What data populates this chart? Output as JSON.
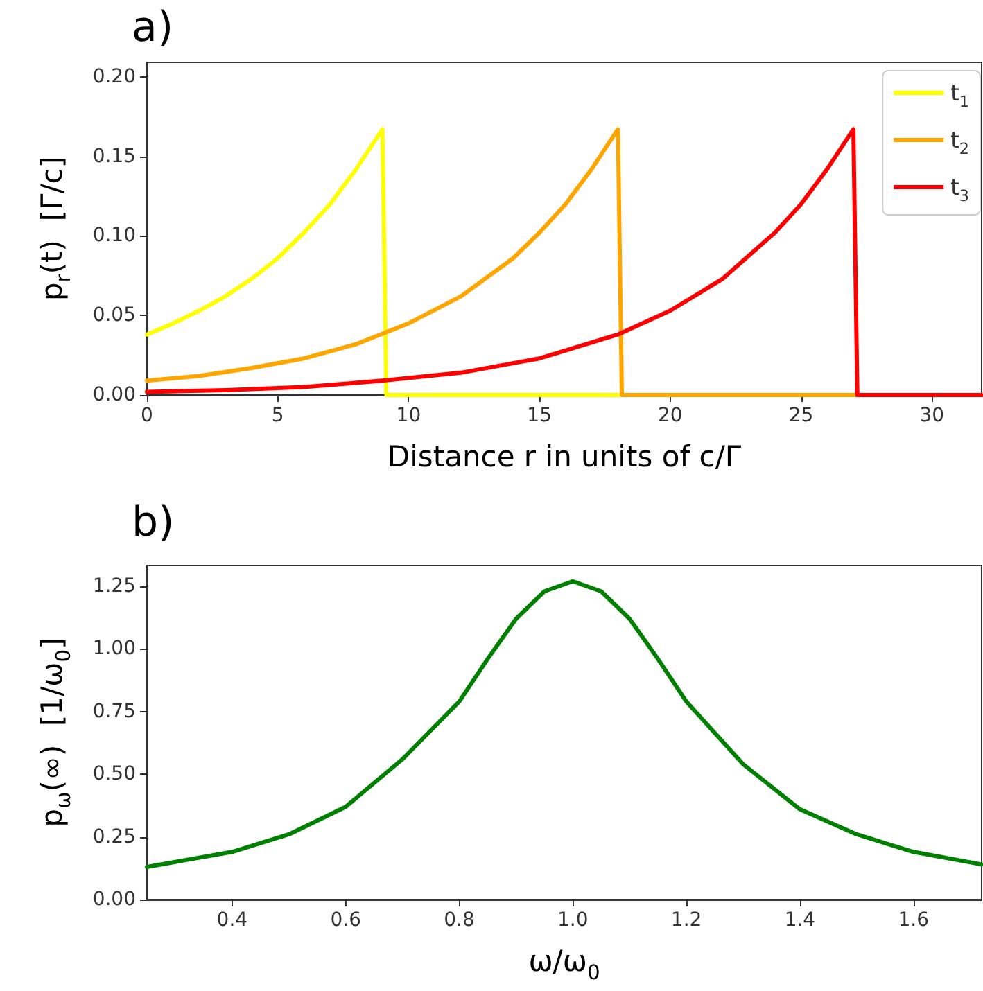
{
  "chart_data": [
    {
      "type": "line",
      "title": "a)",
      "xlabel": "Distance r in units of c/Γ",
      "ylabel": "p$_{r}$(t)  [Γ/c]",
      "xlim": [
        0,
        31.9
      ],
      "ylim": [
        0,
        0.209
      ],
      "xticks": [
        0,
        5,
        10,
        15,
        20,
        25,
        30
      ],
      "yticks": [
        {
          "value": 0,
          "label": "0.00"
        },
        {
          "value": 0.05,
          "label": "0.05"
        },
        {
          "value": 0.1,
          "label": "0.10"
        },
        {
          "value": 0.15,
          "label": "0.15"
        },
        {
          "value": 0.2,
          "label": "0.20"
        }
      ],
      "legend": "top right",
      "grid": false,
      "marker": "none",
      "line_style": "solid",
      "series": [
        {
          "name": "t$_{1}$",
          "color": "#ffff00",
          "x": [
            0,
            1,
            2,
            3,
            4,
            5,
            6,
            7,
            8,
            9,
            9.15,
            31.9
          ],
          "values": [
            0.038,
            0.045,
            0.053,
            0.062,
            0.073,
            0.086,
            0.102,
            0.12,
            0.142,
            0.167,
            0,
            0
          ]
        },
        {
          "name": "t$_{2}$",
          "color": "#ffa500",
          "x": [
            0,
            2,
            4,
            6,
            8,
            10,
            12,
            14,
            15,
            16,
            17,
            18,
            18.15,
            31.9
          ],
          "values": [
            0.009,
            0.012,
            0.017,
            0.023,
            0.032,
            0.045,
            0.062,
            0.086,
            0.102,
            0.12,
            0.142,
            0.167,
            0,
            0
          ]
        },
        {
          "name": "t$_{3}$",
          "color": "#ff0000",
          "x": [
            0,
            3,
            6,
            9,
            12,
            15,
            18,
            20,
            22,
            24,
            25,
            26,
            27,
            27.15,
            31.9
          ],
          "values": [
            0.002,
            0.003,
            0.005,
            0.009,
            0.014,
            0.023,
            0.038,
            0.053,
            0.073,
            0.102,
            0.12,
            0.142,
            0.167,
            0,
            0
          ]
        }
      ]
    },
    {
      "type": "line",
      "title": "b)",
      "xlabel": "ω/ω$_{0}$",
      "ylabel": "p$_{ω}$(∞)  [1/ω$_{0}$]",
      "xlim": [
        0.25,
        1.72
      ],
      "ylim": [
        0,
        1.333
      ],
      "xticks": [
        0.4,
        0.6,
        0.8,
        {
          "value": 1,
          "label": "1.0"
        },
        1.2,
        1.4,
        1.6
      ],
      "yticks": [
        {
          "value": 0,
          "label": "0.00"
        },
        {
          "value": 0.25,
          "label": "0.25"
        },
        {
          "value": 0.5,
          "label": "0.50"
        },
        {
          "value": 0.75,
          "label": "0.75"
        },
        {
          "value": 1,
          "label": "1.00"
        },
        {
          "value": 1.25,
          "label": "1.25"
        }
      ],
      "legend": false,
      "grid": false,
      "marker": "none",
      "line_style": "solid",
      "series": [
        {
          "color": "#008000",
          "x": [
            0.25,
            0.3,
            0.4,
            0.5,
            0.6,
            0.7,
            0.8,
            0.85,
            0.9,
            0.95,
            1.0,
            1.05,
            1.1,
            1.15,
            1.2,
            1.3,
            1.4,
            1.5,
            1.6,
            1.72
          ],
          "values": [
            0.13,
            0.15,
            0.19,
            0.26,
            0.37,
            0.56,
            0.79,
            0.96,
            1.12,
            1.23,
            1.27,
            1.23,
            1.12,
            0.96,
            0.79,
            0.54,
            0.36,
            0.26,
            0.19,
            0.14
          ]
        }
      ]
    }
  ]
}
